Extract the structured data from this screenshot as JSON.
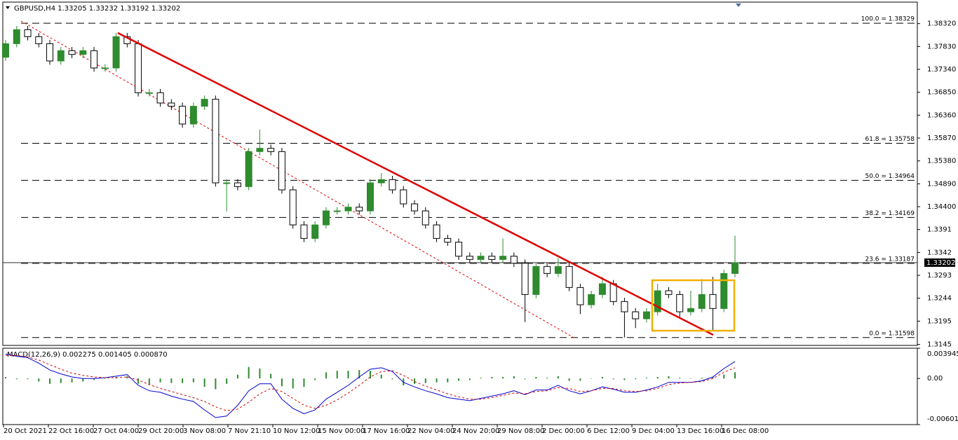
{
  "chart_data": [
    {
      "type": "candlestick",
      "title": "GBPUSD,H4  1.33205 1.33232 1.33192 1.33202",
      "ylim": [
        1.3143,
        1.3878
      ],
      "yticks": [
        {
          "value": 1.3832,
          "label": "1.38320"
        },
        {
          "value": 1.3783,
          "label": "1.37830"
        },
        {
          "value": 1.3734,
          "label": "1.37340"
        },
        {
          "value": 1.3685,
          "label": "1.36850"
        },
        {
          "value": 1.3636,
          "label": "1.36360"
        },
        {
          "value": 1.3587,
          "label": "1.35870"
        },
        {
          "value": 1.3538,
          "label": "1.35380"
        },
        {
          "value": 1.3489,
          "label": "1.34890"
        },
        {
          "value": 1.344,
          "label": "1.34400"
        },
        1.3391,
        1.3342,
        1.3293,
        1.3244,
        1.3195,
        1.3145
      ],
      "x_labels": [
        "20 Oct 2021",
        "22 Oct 16:00",
        "27 Oct 04:00",
        "29 Oct 20:00",
        "3 Nov 08:00",
        "7 Nov 21:10",
        "10 Nov 12:00",
        "15 Nov 00:00",
        "17 Nov 16:00",
        "22 Nov 04:00",
        "24 Nov 20:00",
        "29 Nov 08:00",
        "2 Dec 00:00",
        "6 Dec 12:00",
        "9 Dec 04:00",
        "13 Dec 16:00",
        "16 Dec 08:00"
      ],
      "up_color": "#2e8b2e",
      "down_color": "#000000",
      "ohlc": [
        [
          1.376,
          1.3797,
          1.3752,
          1.3789
        ],
        [
          1.3789,
          1.3827,
          1.3781,
          1.3819
        ],
        [
          1.3819,
          1.3827,
          1.3796,
          1.3804
        ],
        [
          1.3804,
          1.3812,
          1.3781,
          1.3789
        ],
        [
          1.3789,
          1.3797,
          1.3744,
          1.3752
        ],
        [
          1.3752,
          1.3782,
          1.3744,
          1.3774
        ],
        [
          1.3774,
          1.3782,
          1.3758,
          1.3766
        ],
        [
          1.3766,
          1.3782,
          1.3758,
          1.3774
        ],
        [
          1.3774,
          1.3782,
          1.3729,
          1.3737
        ],
        [
          1.3737,
          1.3745,
          1.3729,
          1.3737
        ],
        [
          1.3737,
          1.3812,
          1.3729,
          1.3804
        ],
        [
          1.3804,
          1.3812,
          1.3781,
          1.3789
        ],
        [
          1.3789,
          1.3797,
          1.3676,
          1.3684
        ],
        [
          1.3684,
          1.3692,
          1.3676,
          1.3684
        ],
        [
          1.3684,
          1.3692,
          1.3654,
          1.3662
        ],
        [
          1.3662,
          1.367,
          1.3647,
          1.3655
        ],
        [
          1.3655,
          1.3663,
          1.3609,
          1.3617
        ],
        [
          1.3617,
          1.3663,
          1.3609,
          1.3655
        ],
        [
          1.3655,
          1.3678,
          1.3647,
          1.367
        ],
        [
          1.367,
          1.3678,
          1.3483,
          1.3491
        ],
        [
          1.3491,
          1.3499,
          1.343,
          1.3491
        ],
        [
          1.3491,
          1.3499,
          1.3475,
          1.3483
        ],
        [
          1.3483,
          1.3566,
          1.3475,
          1.3558
        ],
        [
          1.3558,
          1.3605,
          1.355,
          1.3565
        ],
        [
          1.3565,
          1.3573,
          1.355,
          1.3558
        ],
        [
          1.3558,
          1.3566,
          1.3468,
          1.3476
        ],
        [
          1.3476,
          1.3484,
          1.3393,
          1.3401
        ],
        [
          1.3401,
          1.3409,
          1.3364,
          1.3372
        ],
        [
          1.3372,
          1.3409,
          1.3364,
          1.3401
        ],
        [
          1.3401,
          1.3439,
          1.3393,
          1.3431
        ],
        [
          1.3431,
          1.3439,
          1.3423,
          1.3431
        ],
        [
          1.3431,
          1.3447,
          1.3423,
          1.3439
        ],
        [
          1.3439,
          1.3447,
          1.3423,
          1.3431
        ],
        [
          1.3431,
          1.3499,
          1.3423,
          1.3491
        ],
        [
          1.3491,
          1.3512,
          1.3483,
          1.3498
        ],
        [
          1.3498,
          1.3506,
          1.3468,
          1.3476
        ],
        [
          1.3476,
          1.3484,
          1.3438,
          1.3446
        ],
        [
          1.3446,
          1.3454,
          1.3423,
          1.3431
        ],
        [
          1.3431,
          1.3439,
          1.3393,
          1.3401
        ],
        [
          1.3401,
          1.3409,
          1.3364,
          1.3372
        ],
        [
          1.3372,
          1.338,
          1.3356,
          1.3364
        ],
        [
          1.3364,
          1.3372,
          1.3326,
          1.3334
        ],
        [
          1.3334,
          1.3342,
          1.3319,
          1.3327
        ],
        [
          1.3327,
          1.3342,
          1.3319,
          1.3334
        ],
        [
          1.3334,
          1.3342,
          1.3319,
          1.3327
        ],
        [
          1.3327,
          1.3372,
          1.3319,
          1.3334
        ],
        [
          1.3334,
          1.3342,
          1.3311,
          1.3319
        ],
        [
          1.3319,
          1.3327,
          1.3193,
          1.3252
        ],
        [
          1.3252,
          1.332,
          1.3244,
          1.3312
        ],
        [
          1.3312,
          1.332,
          1.3289,
          1.3297
        ],
        [
          1.3297,
          1.333,
          1.3289,
          1.3312
        ],
        [
          1.3312,
          1.332,
          1.3259,
          1.3267
        ],
        [
          1.3267,
          1.3275,
          1.321,
          1.323
        ],
        [
          1.323,
          1.326,
          1.3222,
          1.3252
        ],
        [
          1.3252,
          1.329,
          1.3244,
          1.3275
        ],
        [
          1.3275,
          1.3283,
          1.3229,
          1.3237
        ],
        [
          1.3237,
          1.3245,
          1.316,
          1.3215
        ],
        [
          1.3215,
          1.3223,
          1.318,
          1.32
        ],
        [
          1.32,
          1.3223,
          1.3192,
          1.3215
        ],
        [
          1.3215,
          1.3275,
          1.3207,
          1.326
        ],
        [
          1.326,
          1.3268,
          1.3244,
          1.3252
        ],
        [
          1.3252,
          1.326,
          1.32,
          1.3215
        ],
        [
          1.3215,
          1.326,
          1.3207,
          1.3222
        ],
        [
          1.3222,
          1.3285,
          1.3214,
          1.3252
        ],
        [
          1.3252,
          1.329,
          1.3175,
          1.3222
        ],
        [
          1.3222,
          1.3305,
          1.3214,
          1.3297
        ],
        [
          1.3297,
          1.3378,
          1.3289,
          1.332
        ]
      ],
      "fib_levels": [
        {
          "value": 1.38329,
          "label": "100.0 = 1.38329"
        },
        {
          "value": 1.35758,
          "label": "61.8 = 1.35758"
        },
        {
          "value": 1.34964,
          "label": "50.0 = 1.34964"
        },
        {
          "value": 1.34169,
          "label": "38.2 = 1.34169"
        },
        {
          "value": 1.33187,
          "label": "23.6 = 1.33187"
        },
        {
          "value": 1.31598,
          "label": "0.0 = 1.31598"
        }
      ],
      "current_price": 1.33202
    },
    {
      "type": "macd",
      "title": "MACD(12,26,9) 0.002275 0.001405 0.000870",
      "ylim": [
        -0.006013,
        0.003945
      ],
      "yticks": [
        0.003945,
        {
          "value": 0,
          "label": "0.00"
        },
        -0.006013
      ],
      "histogram": {
        "color": "#2e8b2e",
        "values": [
          0.0002,
          -0.0001,
          -0.0001,
          -0.0004,
          -0.0007,
          -0.0006,
          -0.0005,
          -0.0004,
          -0.0002,
          0.0,
          0.0002,
          0.0003,
          -0.0007,
          -0.0008,
          -0.0005,
          -0.0006,
          -0.0006,
          -0.0005,
          -0.0011,
          -0.0014,
          -0.0007,
          0.0005,
          0.0015,
          0.0013,
          0.0006,
          -0.001,
          -0.0013,
          -0.0011,
          -0.0002,
          0.0008,
          0.001,
          0.001,
          0.0011,
          0.001,
          0.0005,
          -0.0001,
          -0.0009,
          -0.0007,
          -0.0006,
          -0.0005,
          -0.0005,
          -0.0003,
          -0.0002,
          0.0001,
          0.0002,
          0.0002,
          0.0003,
          -0.0001,
          0.0002,
          0.0001,
          0.0003,
          -0.0003,
          -0.0003,
          0.0,
          0.0002,
          -0.0001,
          -0.0002,
          -0.0001,
          0.0001,
          0.0002,
          0.0003,
          0.0001,
          0.0,
          0.0001,
          0.0002,
          0.0005,
          0.0008
        ]
      },
      "line": {
        "color": "#0000cd",
        "values": [
          0.0032,
          0.0029,
          0.0027,
          0.002,
          0.0011,
          0.0006,
          0.0002,
          0.0,
          0.0,
          0.0001,
          0.0003,
          0.0005,
          -0.0009,
          -0.0016,
          -0.0018,
          -0.0023,
          -0.0027,
          -0.003,
          -0.0041,
          -0.0051,
          -0.0049,
          -0.0035,
          -0.0016,
          -0.0007,
          -0.0007,
          -0.0027,
          -0.0039,
          -0.0046,
          -0.0041,
          -0.0027,
          -0.0018,
          -0.0009,
          0.0002,
          0.0012,
          0.0014,
          0.0009,
          -0.0005,
          -0.0011,
          -0.0016,
          -0.002,
          -0.0025,
          -0.0027,
          -0.0029,
          -0.0026,
          -0.0023,
          -0.002,
          -0.0016,
          -0.0021,
          -0.0015,
          -0.0015,
          -0.0009,
          -0.0016,
          -0.002,
          -0.0016,
          -0.0011,
          -0.0014,
          -0.0018,
          -0.0018,
          -0.0015,
          -0.0011,
          -0.0005,
          -0.0005,
          -0.0005,
          -0.0003,
          0.0002,
          0.0013,
          0.0022
        ]
      },
      "signal": {
        "color": "#d00000",
        "values": [
          0.003,
          0.003,
          0.0028,
          0.0024,
          0.0018,
          0.0012,
          0.0007,
          0.0004,
          0.0002,
          0.0001,
          0.0001,
          0.0002,
          -0.0002,
          -0.0008,
          -0.0013,
          -0.0017,
          -0.0021,
          -0.0025,
          -0.003,
          -0.0037,
          -0.0042,
          -0.004,
          -0.0031,
          -0.002,
          -0.0013,
          -0.0017,
          -0.0026,
          -0.0035,
          -0.0039,
          -0.0035,
          -0.0028,
          -0.0019,
          -0.0009,
          0.0002,
          0.0009,
          0.001,
          0.0004,
          -0.0004,
          -0.001,
          -0.0015,
          -0.002,
          -0.0024,
          -0.0027,
          -0.0027,
          -0.0025,
          -0.0022,
          -0.0019,
          -0.002,
          -0.0017,
          -0.0016,
          -0.0012,
          -0.0013,
          -0.0017,
          -0.0016,
          -0.0013,
          -0.0013,
          -0.0016,
          -0.0017,
          -0.0016,
          -0.0013,
          -0.0008,
          -0.0006,
          -0.0005,
          -0.0004,
          0.0,
          0.0008,
          0.0014
        ]
      }
    }
  ]
}
